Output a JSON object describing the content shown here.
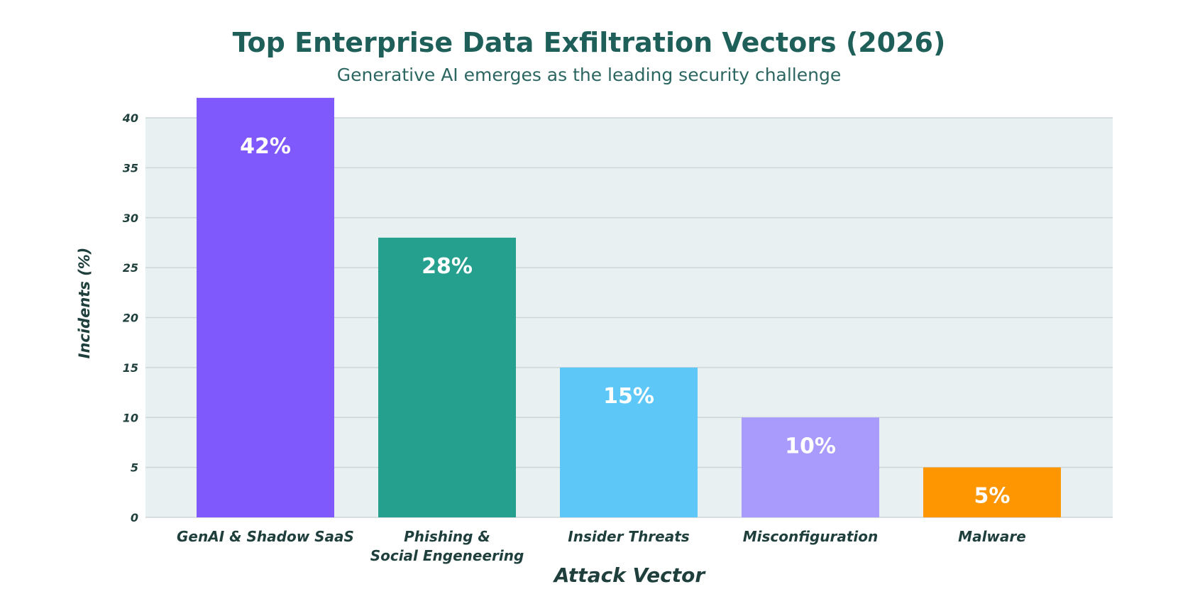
{
  "chart_data": {
    "type": "bar",
    "title": "Top Enterprise Data Exfiltration Vectors (2026)",
    "subtitle": "Generative AI emerges as the leading security challenge",
    "xlabel": "Attack Vector",
    "ylabel": "Incidents (%)",
    "ylim": [
      0,
      40
    ],
    "yticks": [
      "0",
      "5",
      "10",
      "15",
      "20",
      "25",
      "30",
      "35",
      "40"
    ],
    "grid": true,
    "categories": [
      [
        "GenAI & Shadow SaaS"
      ],
      [
        "Phishing &",
        "Social Engeneering"
      ],
      [
        "Insider Threats"
      ],
      [
        "Misconfiguration"
      ],
      [
        "Malware"
      ]
    ],
    "values": [
      42,
      28,
      15,
      10,
      5
    ],
    "value_labels": [
      "42%",
      "28%",
      "15%",
      "10%",
      "5%"
    ],
    "colors": [
      "#8059fd",
      "#26a08e",
      "#5dc8f8",
      "#a99bfb",
      "#fd9600"
    ],
    "plot_background": "#e8f0f1",
    "grid_color": "#cdd6d7"
  }
}
